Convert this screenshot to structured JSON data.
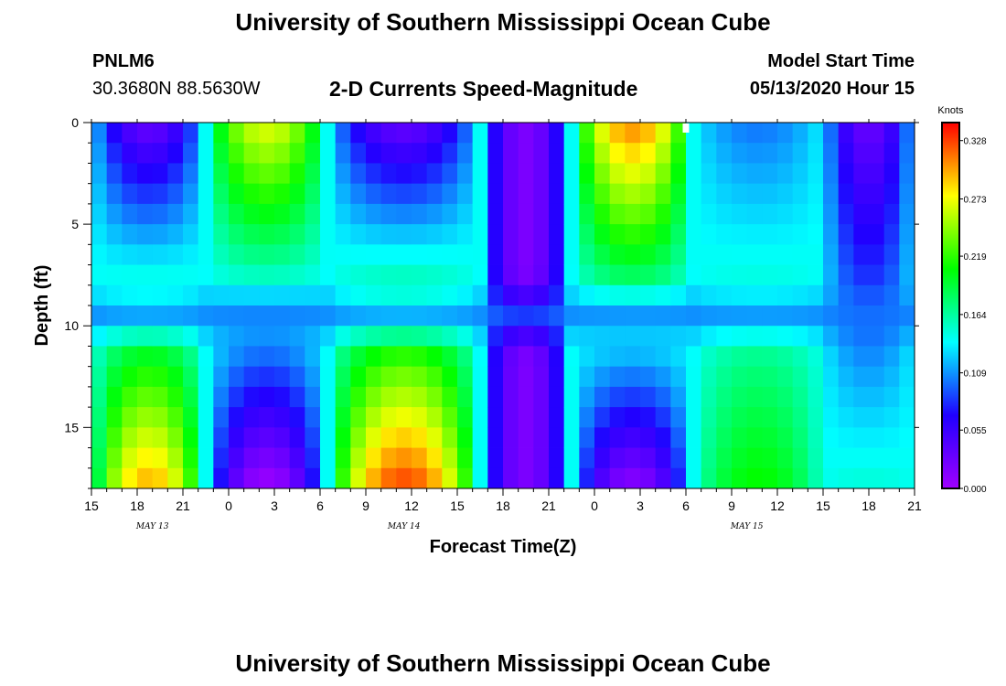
{
  "header": {
    "title": "University of Southern Mississippi Ocean Cube",
    "station": "PNLM6",
    "location": "30.3680N 88.5630W",
    "subtitle": "2-D Currents Speed-Magnitude",
    "model_start_label": "Model Start Time",
    "model_start_value": "05/13/2020 Hour 15"
  },
  "footer": {
    "title": "University of Southern Mississippi Ocean Cube"
  },
  "colors": {
    "scale": [
      "#a000ff",
      "#2000ff",
      "#00ffff",
      "#00ff00",
      "#ffff00",
      "#ff0000"
    ],
    "marker": "#ffffff"
  },
  "chart_data": {
    "type": "heatmap",
    "title": "2-D Currents Speed-Magnitude",
    "xlabel": "Forecast Time(Z)",
    "ylabel": "Depth (ft)",
    "x": {
      "unit": "hours since 05/13/2020 15Z",
      "range": [
        0,
        54
      ],
      "cell_hours": 1,
      "tick_positions": [
        0,
        3,
        6,
        9,
        12,
        15,
        18,
        21,
        24,
        27,
        30,
        33,
        36,
        39,
        42,
        45,
        48,
        51,
        54
      ],
      "tick_labels": [
        "15",
        "18",
        "21",
        "0",
        "3",
        "6",
        "9",
        "12",
        "15",
        "18",
        "21",
        "0",
        "3",
        "6",
        "9",
        "12",
        "15",
        "18",
        "21"
      ],
      "date_labels": [
        {
          "label": "MAY 13",
          "at": 4
        },
        {
          "label": "MAY 14",
          "at": 20.5
        },
        {
          "label": "MAY 15",
          "at": 43
        }
      ]
    },
    "y": {
      "unit": "ft",
      "range": [
        0,
        18
      ],
      "inverted": true,
      "ticks": [
        0,
        5,
        10,
        15
      ],
      "cell_ft": 1
    },
    "colorbar": {
      "unit": "Knots",
      "min": 0.0,
      "max": 0.345,
      "tick_labels": [
        "0.328",
        "0.273",
        "0.219",
        "0.164",
        "0.109",
        "0.055",
        "0.000"
      ],
      "tick_values": [
        0.328,
        0.273,
        0.219,
        0.164,
        0.109,
        0.055,
        0.0
      ]
    },
    "phases": [
      {
        "start": 0,
        "end": 7.5,
        "top": 0.03,
        "bottom": 0.3
      },
      {
        "start": 7.5,
        "end": 15.5,
        "top": 0.27,
        "bottom": 0.0
      },
      {
        "start": 15.5,
        "end": 25.5,
        "top": 0.03,
        "bottom": 0.33
      },
      {
        "start": 25.5,
        "end": 31.5,
        "top": 0.02,
        "bottom": 0.02
      },
      {
        "start": 31.5,
        "end": 39.5,
        "top": 0.31,
        "bottom": 0.01
      },
      {
        "start": 39.5,
        "end": 48,
        "top": 0.1,
        "bottom": 0.21
      },
      {
        "start": 48,
        "end": 54,
        "top": 0.03,
        "bottom": 0.15
      }
    ],
    "phase_edge_value": 0.14,
    "transition_depth_ft": 9.5,
    "transition_value": 0.1,
    "marker": {
      "x": 39,
      "depth": 0
    }
  }
}
